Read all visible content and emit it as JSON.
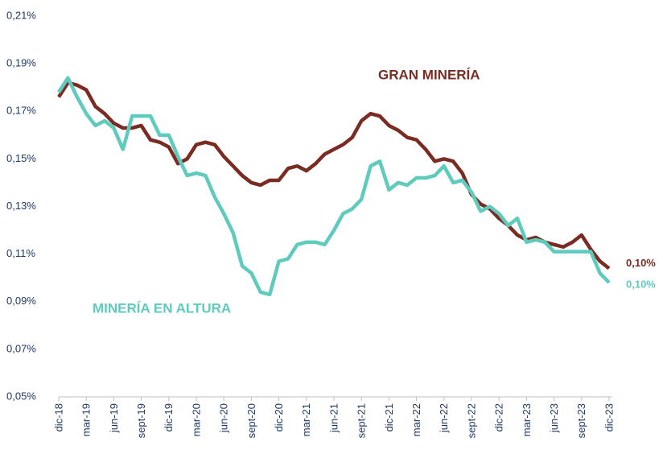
{
  "chart_data": {
    "type": "line",
    "categories": [
      "dic-18",
      null,
      null,
      "mar-19",
      null,
      null,
      "jun-19",
      null,
      null,
      "sept-19",
      null,
      null,
      "dic-19",
      null,
      null,
      "mar-20",
      null,
      null,
      "jun-20",
      null,
      null,
      "sept-20",
      null,
      null,
      "dic-20",
      null,
      null,
      "mar-21",
      null,
      null,
      "jun-21",
      null,
      null,
      "sept-21",
      null,
      null,
      "dic-21",
      null,
      null,
      "mar-22",
      null,
      null,
      "jun-22",
      null,
      null,
      "sept-22",
      null,
      null,
      "dic-22",
      null,
      null,
      "mar-23",
      null,
      null,
      "jun-23",
      null,
      null,
      "sept-23",
      null,
      null,
      "dic-23"
    ],
    "series": [
      {
        "name": "GRAN MINERÍA",
        "color": "#7b2c22",
        "values": [
          0.176,
          0.182,
          0.181,
          0.179,
          0.172,
          0.169,
          0.165,
          0.163,
          0.163,
          0.164,
          0.158,
          0.157,
          0.155,
          0.148,
          0.15,
          0.156,
          0.157,
          0.156,
          0.151,
          0.147,
          0.143,
          0.14,
          0.139,
          0.141,
          0.141,
          0.146,
          0.147,
          0.145,
          0.148,
          0.152,
          0.154,
          0.156,
          0.159,
          0.166,
          0.169,
          0.168,
          0.164,
          0.162,
          0.159,
          0.158,
          0.154,
          0.149,
          0.15,
          0.149,
          0.144,
          0.135,
          0.131,
          0.129,
          0.125,
          0.122,
          0.118,
          0.116,
          0.117,
          0.115,
          0.114,
          0.113,
          0.115,
          0.118,
          0.112,
          0.107,
          0.104
        ],
        "value_labels": [
          null,
          null,
          null,
          null,
          null,
          null,
          null,
          null,
          null,
          null,
          null,
          null,
          null,
          null,
          null,
          null,
          null,
          null,
          null,
          null,
          null,
          null,
          null,
          null,
          null,
          null,
          null,
          null,
          null,
          null,
          null,
          null,
          null,
          null,
          null,
          null,
          null,
          null,
          null,
          null,
          null,
          null,
          null,
          null,
          null,
          null,
          null,
          null,
          null,
          null,
          null,
          null,
          null,
          null,
          null,
          null,
          null,
          null,
          null,
          null,
          "0,10%"
        ]
      },
      {
        "name": "MINERÍA EN ALTURA",
        "color": "#5ecbbd",
        "values": [
          0.178,
          0.184,
          0.176,
          0.169,
          0.164,
          0.166,
          0.163,
          0.154,
          0.168,
          0.168,
          0.168,
          0.16,
          0.16,
          0.151,
          0.143,
          0.144,
          0.143,
          0.134,
          0.127,
          0.119,
          0.105,
          0.102,
          0.094,
          0.093,
          0.107,
          0.108,
          0.114,
          0.115,
          0.115,
          0.114,
          0.12,
          0.127,
          0.129,
          0.133,
          0.147,
          0.149,
          0.137,
          0.14,
          0.139,
          0.142,
          0.142,
          0.143,
          0.147,
          0.14,
          0.141,
          0.136,
          0.128,
          0.13,
          0.127,
          0.122,
          0.125,
          0.115,
          0.116,
          0.115,
          0.111,
          0.111,
          0.111,
          0.111,
          0.111,
          0.102,
          0.098
        ],
        "value_labels": [
          null,
          null,
          null,
          null,
          null,
          null,
          null,
          null,
          null,
          null,
          null,
          null,
          null,
          null,
          null,
          null,
          null,
          null,
          null,
          null,
          null,
          null,
          null,
          null,
          null,
          null,
          null,
          null,
          null,
          null,
          null,
          null,
          null,
          null,
          null,
          null,
          null,
          null,
          null,
          null,
          null,
          null,
          null,
          null,
          null,
          null,
          null,
          null,
          null,
          null,
          null,
          null,
          null,
          null,
          null,
          null,
          null,
          null,
          null,
          null,
          "0,10%"
        ]
      }
    ],
    "ylim": [
      0.05,
      0.21
    ],
    "yticks": [
      {
        "value": 0.05,
        "label": "0,05%"
      },
      {
        "value": 0.07,
        "label": "0,07%"
      },
      {
        "value": 0.09,
        "label": "0,09%"
      },
      {
        "value": 0.11,
        "label": "0,11%"
      },
      {
        "value": 0.13,
        "label": "0,13%"
      },
      {
        "value": 0.15,
        "label": "0,15%"
      },
      {
        "value": 0.17,
        "label": "0,17%"
      },
      {
        "value": 0.19,
        "label": "0,19%"
      },
      {
        "value": 0.21,
        "label": "0,21%"
      }
    ],
    "grid": false
  }
}
